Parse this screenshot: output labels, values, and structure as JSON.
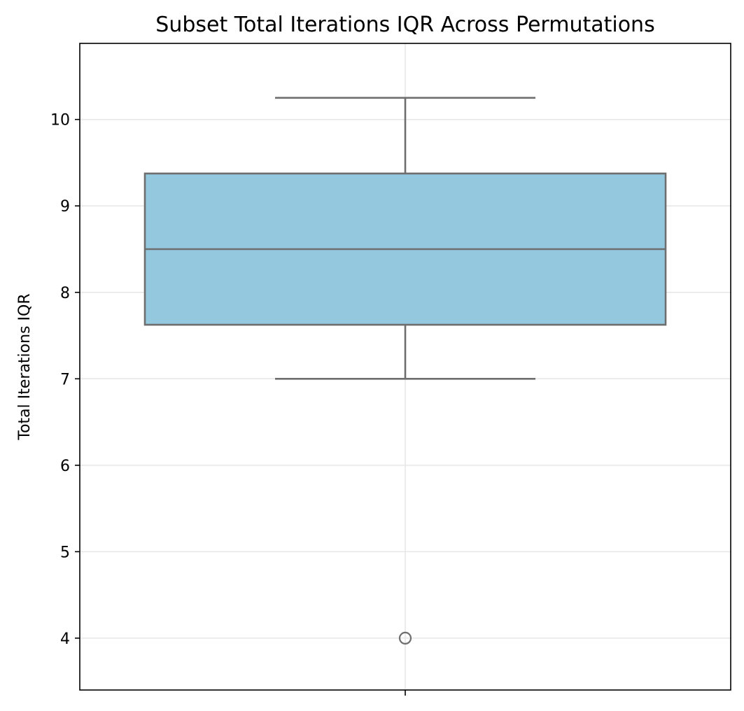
{
  "chart_data": {
    "type": "box",
    "title": "Subset Total Iterations IQR Across Permutations",
    "xlabel": "",
    "ylabel": "Total Iterations IQR",
    "ylim": [
      3.4,
      10.88
    ],
    "yticks": [
      4,
      5,
      6,
      7,
      8,
      9,
      10
    ],
    "grid": true,
    "legend": "none",
    "box": {
      "whisker_low": 7.0,
      "q1": 7.625,
      "median": 8.5,
      "q3": 9.375,
      "whisker_high": 10.25,
      "outliers": [
        4.0
      ]
    },
    "colors": {
      "box_fill": "#93c8df",
      "box_edge": "#6e6e6e",
      "grid": "#e6e6e6",
      "axis": "#000000"
    }
  }
}
